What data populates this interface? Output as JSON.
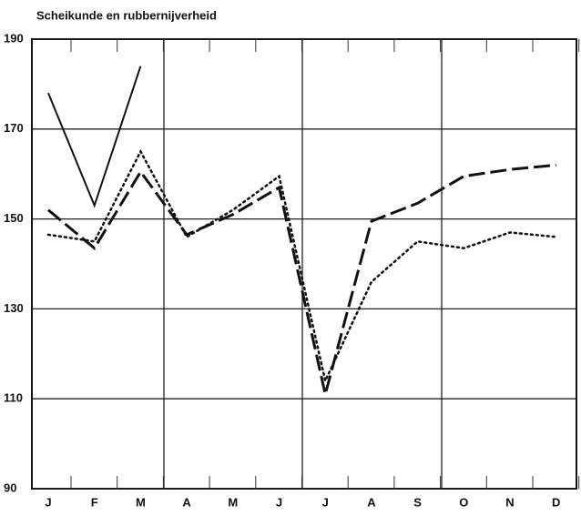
{
  "chart_data": {
    "type": "line",
    "title": "Scheikunde en rubbernijverheid",
    "categories": [
      "J",
      "F",
      "M",
      "A",
      "M",
      "J",
      "J",
      "A",
      "S",
      "O",
      "N",
      "D"
    ],
    "series": [
      {
        "color": "#111111",
        "dash": "solid",
        "values": [
          178,
          153,
          184,
          null,
          null,
          null,
          null,
          null,
          null,
          null,
          null,
          null
        ]
      },
      {
        "color": "#111111",
        "dash": "dashed",
        "values": [
          152,
          143.5,
          160.5,
          146.5,
          151,
          157,
          111,
          149.5,
          153.5,
          159.5,
          161,
          162
        ]
      },
      {
        "color": "#111111",
        "dash": "dotted",
        "values": [
          146.5,
          145,
          165,
          146,
          152,
          159.5,
          114,
          136,
          145,
          143.5,
          147,
          146
        ]
      }
    ],
    "ylim": [
      90,
      190
    ],
    "yticks": [
      90,
      110,
      130,
      150,
      170,
      190
    ],
    "grid": true
  }
}
